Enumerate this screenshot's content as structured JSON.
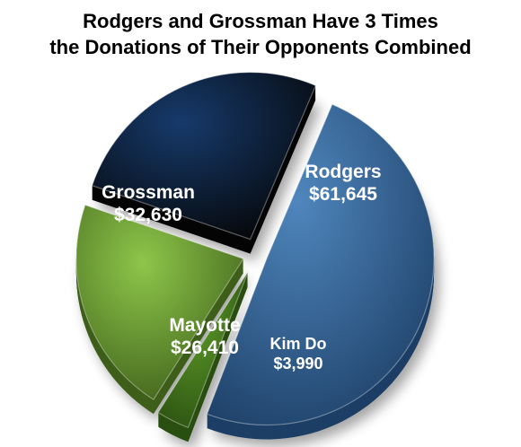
{
  "chart_data": {
    "type": "pie",
    "title_line1": "Rodgers and Grossman Have 3 Times",
    "title_line2": "the Donations of Their Opponents Combined",
    "slices": [
      {
        "name": "Rodgers",
        "value": 61645,
        "value_label": "$61,645",
        "color": "#4f86bd",
        "dark": "#1d3f66"
      },
      {
        "name": "Kim Do",
        "value": 3990,
        "value_label": "$3,990",
        "color": "#5c9a29",
        "dark": "#2a4f10"
      },
      {
        "name": "Mayotte",
        "value": 26410,
        "value_label": "$26,410",
        "color": "#8ec64a",
        "dark": "#3e5f1a"
      },
      {
        "name": "Grossman",
        "value": 32630,
        "value_label": "$32,630",
        "color": "#163a6b",
        "dark": "#050505"
      }
    ],
    "legend": "none",
    "style": "3d-exploded"
  }
}
